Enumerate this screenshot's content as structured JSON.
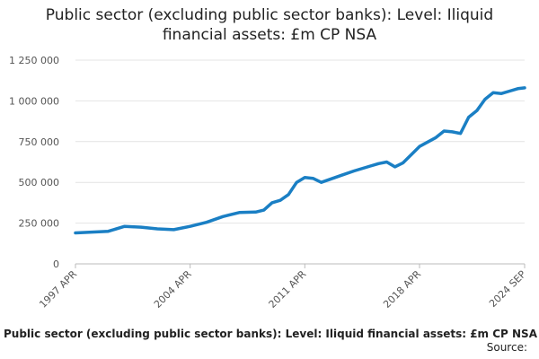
{
  "chart_data": {
    "type": "line",
    "title": "Public sector (excluding public sector banks): Level: Iliquid financial assets: £m CP NSA",
    "title_lines": [
      "Public sector (excluding public sector banks): Level: Iliquid",
      "financial assets: £m CP NSA"
    ],
    "xlabel": "",
    "ylabel": "",
    "x_ticks": [
      "1997 APR",
      "2004 APR",
      "2011 APR",
      "2018 APR",
      "2024 SEP"
    ],
    "y_ticks": [
      "0",
      "250 000",
      "500 000",
      "750 000",
      "1 000 000",
      "1 250 000"
    ],
    "ylim": [
      0,
      1250000
    ],
    "grid": true,
    "line_color": "#1a7fc4",
    "series": [
      {
        "x": [
          "1997 APR",
          "1998 APR",
          "1999 APR",
          "2000 APR",
          "2001 APR",
          "2002 APR",
          "2003 APR",
          "2004 APR",
          "2005 APR",
          "2006 APR",
          "2007 APR",
          "2008 APR",
          "2008 OCT",
          "2009 APR",
          "2009 OCT",
          "2010 APR",
          "2010 OCT",
          "2011 APR",
          "2011 OCT",
          "2012 APR",
          "2013 APR",
          "2014 APR",
          "2015 APR",
          "2015 OCT",
          "2016 APR",
          "2016 OCT",
          "2017 APR",
          "2018 APR",
          "2019 APR",
          "2019 OCT",
          "2020 APR",
          "2020 OCT",
          "2021 APR",
          "2021 OCT",
          "2022 APR",
          "2022 OCT",
          "2023 APR",
          "2023 OCT",
          "2024 APR",
          "2024 SEP"
        ],
        "values": [
          190000,
          195000,
          200000,
          230000,
          225000,
          215000,
          210000,
          230000,
          255000,
          290000,
          315000,
          318000,
          330000,
          375000,
          390000,
          425000,
          500000,
          530000,
          525000,
          500000,
          535000,
          570000,
          600000,
          615000,
          625000,
          595000,
          620000,
          720000,
          775000,
          815000,
          810000,
          800000,
          900000,
          940000,
          1010000,
          1050000,
          1045000,
          1060000,
          1075000,
          1080000
        ]
      }
    ]
  },
  "footer": {
    "title": "Public sector (excluding public sector banks): Level: Iliquid financial assets: £m CP NSA",
    "source": "Source:"
  }
}
